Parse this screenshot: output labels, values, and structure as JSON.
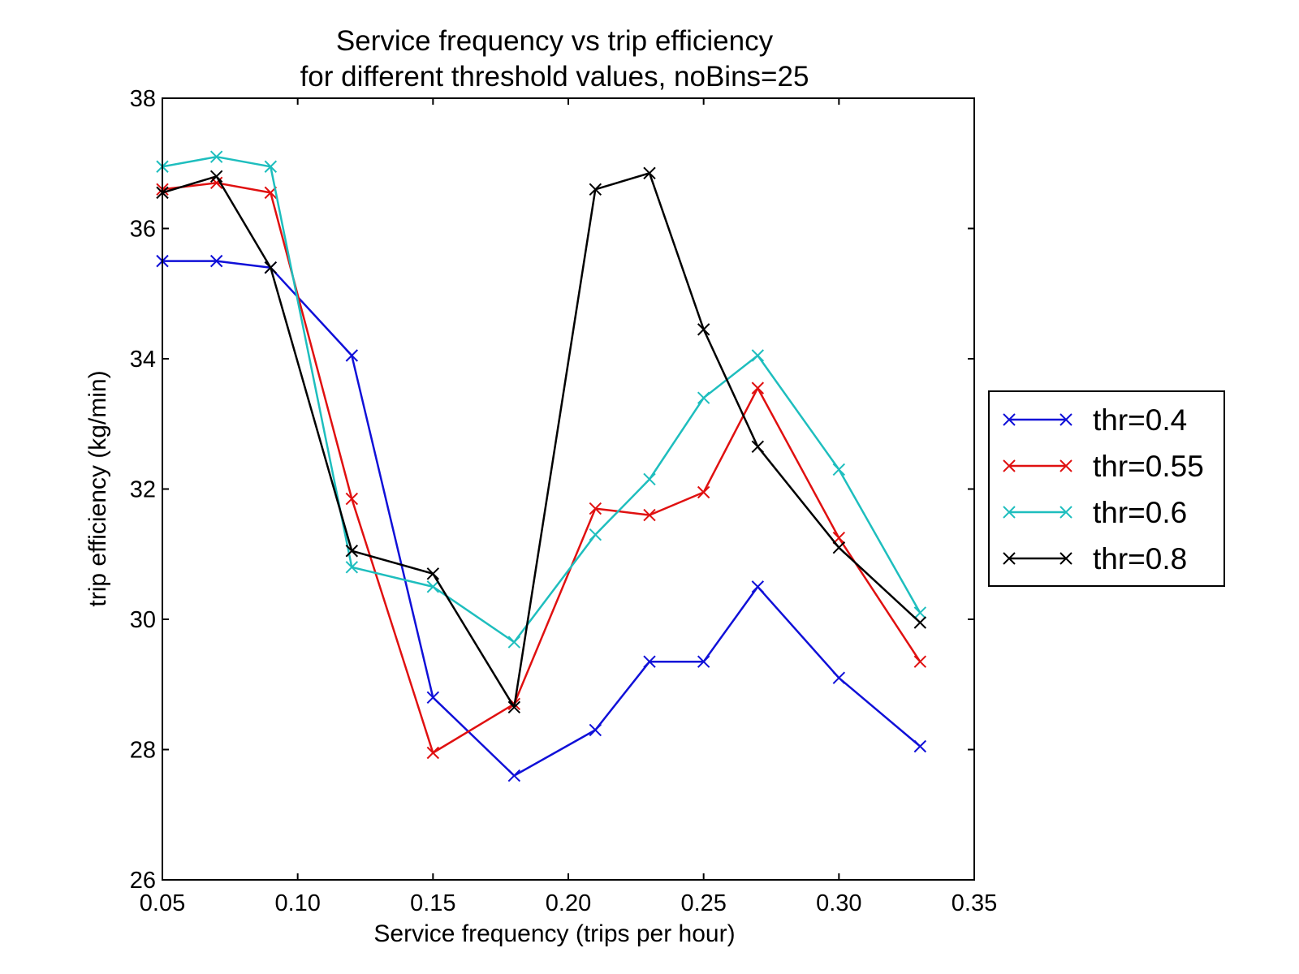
{
  "chart_data": {
    "type": "line",
    "title": "Service frequency vs trip efficiency",
    "subtitle": "for different threshold values, noBins=25",
    "xlabel": "Service frequency (trips per hour)",
    "ylabel": "trip efficiency (kg/min)",
    "xlim": [
      0.05,
      0.35
    ],
    "ylim": [
      26,
      38
    ],
    "xticks": [
      "0.05",
      "0.10",
      "0.15",
      "0.20",
      "0.25",
      "0.30",
      "0.35"
    ],
    "yticks": [
      "26",
      "28",
      "30",
      "32",
      "34",
      "36",
      "38"
    ],
    "x": [
      0.05,
      0.07,
      0.09,
      0.12,
      0.15,
      0.18,
      0.21,
      0.23,
      0.25,
      0.27,
      0.3,
      0.33
    ],
    "grid": false,
    "marker": "x",
    "legend_position": "right, outside plot",
    "series": [
      {
        "name": "thr=0.4",
        "color": "#1010d8",
        "values": [
          35.5,
          35.5,
          35.4,
          34.05,
          28.8,
          27.6,
          28.3,
          29.35,
          29.35,
          30.5,
          29.1,
          28.05
        ]
      },
      {
        "name": "thr=0.55",
        "color": "#e01010",
        "values": [
          36.6,
          36.7,
          36.55,
          31.85,
          27.95,
          28.7,
          31.7,
          31.6,
          31.95,
          33.55,
          31.25,
          29.35
        ]
      },
      {
        "name": "thr=0.6",
        "color": "#1ebebe",
        "values": [
          36.95,
          37.1,
          36.95,
          30.8,
          30.5,
          29.65,
          31.3,
          32.15,
          33.4,
          34.05,
          32.3,
          30.1
        ]
      },
      {
        "name": "thr=0.8",
        "color": "#000000",
        "values": [
          36.55,
          36.8,
          35.4,
          31.05,
          30.7,
          28.65,
          36.6,
          36.85,
          34.45,
          32.65,
          31.1,
          29.95
        ]
      }
    ]
  }
}
